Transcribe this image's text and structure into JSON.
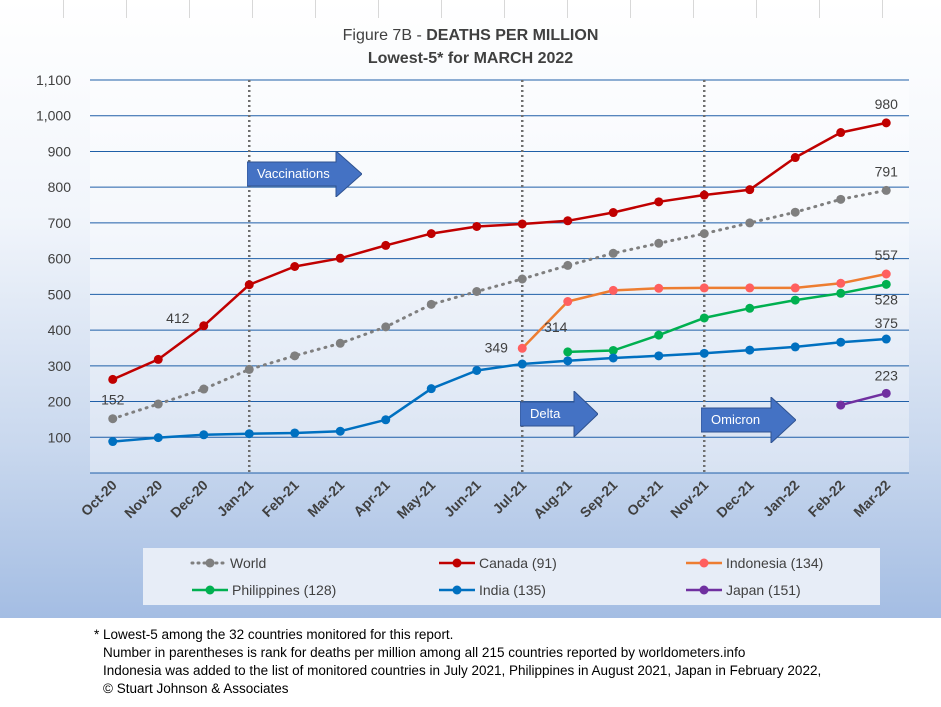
{
  "chart_data": {
    "type": "line",
    "title_prefix": "Figure 7B - ",
    "title_bold": "DEATHS PER MILLION",
    "subtitle": "Lowest-5* for MARCH 2022",
    "ylim": [
      0,
      1100
    ],
    "yticks": [
      "",
      "100",
      "200",
      "300",
      "400",
      "500",
      "600",
      "700",
      "800",
      "900",
      "1,000",
      "1,100"
    ],
    "categories": [
      "Oct-20",
      "Nov-20",
      "Dec-20",
      "Jan-21",
      "Feb-21",
      "Mar-21",
      "Apr-21",
      "May-21",
      "Jun-21",
      "Jul-21",
      "Aug-21",
      "Sep-21",
      "Oct-21",
      "Nov-21",
      "Dec-21",
      "Jan-22",
      "Feb-22",
      "Mar-22"
    ],
    "grid": true,
    "legend_position": "bottom",
    "series": [
      {
        "name": "World",
        "color": "#7f7f7f",
        "dashed": true,
        "values": [
          152,
          193,
          235,
          290,
          328,
          363,
          409,
          472,
          508,
          543,
          581,
          615,
          643,
          670,
          700,
          730,
          766,
          791
        ]
      },
      {
        "name": "Canada (91)",
        "color": "#c00000",
        "dashed": false,
        "values": [
          262,
          318,
          412,
          527,
          578,
          601,
          637,
          670,
          690,
          697,
          706,
          729,
          759,
          778,
          793,
          883,
          953,
          980
        ]
      },
      {
        "name": "Indonesia (134)",
        "color": "#ed7d31",
        "dashed": false,
        "marker_color": "#ff5f5f",
        "values": [
          null,
          null,
          null,
          null,
          null,
          null,
          null,
          null,
          null,
          349,
          480,
          511,
          517,
          518,
          518,
          518,
          531,
          557
        ]
      },
      {
        "name": "Philippines (128)",
        "color": "#00b050",
        "dashed": false,
        "values": [
          null,
          null,
          null,
          null,
          null,
          null,
          null,
          null,
          null,
          null,
          339,
          343,
          386,
          434,
          461,
          484,
          503,
          528
        ]
      },
      {
        "name": "India (135)",
        "color": "#0070c0",
        "dashed": false,
        "values": [
          88,
          99,
          107,
          110,
          112,
          117,
          149,
          236,
          287,
          305,
          314,
          322,
          328,
          335,
          344,
          353,
          366,
          375
        ]
      },
      {
        "name": "Japan (151)",
        "color": "#7030a0",
        "dashed": false,
        "values": [
          null,
          null,
          null,
          null,
          null,
          null,
          null,
          null,
          null,
          null,
          null,
          null,
          null,
          null,
          null,
          null,
          190,
          223
        ]
      }
    ],
    "data_labels": [
      {
        "text": "152",
        "series": 0,
        "index": 0,
        "dx": 0,
        "dy": -14
      },
      {
        "text": "412",
        "series": 1,
        "index": 2,
        "dx": -26,
        "dy": -3
      },
      {
        "text": "980",
        "series": 1,
        "index": 17,
        "dx": 0,
        "dy": -14
      },
      {
        "text": "791",
        "series": 0,
        "index": 17,
        "dx": 0,
        "dy": -14
      },
      {
        "text": "557",
        "series": 2,
        "index": 17,
        "dx": 0,
        "dy": -14
      },
      {
        "text": "528",
        "series": 3,
        "index": 17,
        "dx": 0,
        "dy": 20
      },
      {
        "text": "375",
        "series": 4,
        "index": 17,
        "dx": 0,
        "dy": -11
      },
      {
        "text": "223",
        "series": 5,
        "index": 17,
        "dx": 0,
        "dy": -13
      },
      {
        "text": "349",
        "series": 2,
        "index": 9,
        "dx": -26,
        "dy": 4
      },
      {
        "text": "314",
        "series": 4,
        "index": 10,
        "dx": -12,
        "dy": -29
      }
    ],
    "event_lines": [
      {
        "index": 3,
        "label": "Vaccinations"
      },
      {
        "index": 9,
        "label": "Delta"
      },
      {
        "index": 13,
        "label": "Omicron"
      }
    ]
  },
  "legend": {
    "items": [
      "World",
      "Canada (91)",
      "Indonesia (134)",
      "Philippines (128)",
      "India (135)",
      "Japan (151)"
    ]
  },
  "footnotes": {
    "line1": "* Lowest-5 among the 32 countries monitored for this report.",
    "line2": "Number in parentheses is rank for deaths per million among all 215 countries reported by worldometers.info",
    "line3": "Indonesia was added to the list of monitored countries in July 2021, Philippines in August 2021, Japan in February 2022,",
    "line4": "© Stuart Johnson & Associates"
  }
}
